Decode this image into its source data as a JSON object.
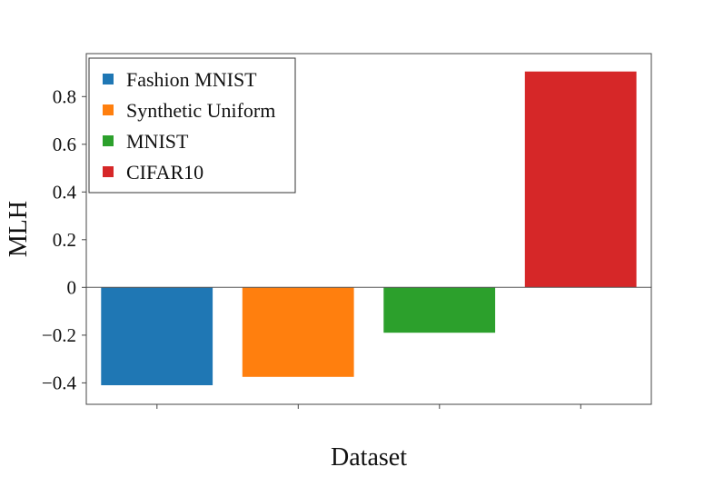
{
  "chart_data": {
    "type": "bar",
    "title": "",
    "xlabel": "Dataset",
    "ylabel": "MLH",
    "ylim": [
      -0.49,
      0.98
    ],
    "yticks": [
      -0.4,
      -0.2,
      0,
      0.2,
      0.4,
      0.6,
      0.8
    ],
    "ytick_labels": [
      "−0.4",
      "−0.2",
      "0",
      "0.2",
      "0.4",
      "0.6",
      "0.8"
    ],
    "grid": false,
    "legend_position": "top-left",
    "series": [
      {
        "name": "Fashion MNIST",
        "value": -0.41,
        "color": "#1f77b4"
      },
      {
        "name": "Synthetic Uniform",
        "value": -0.375,
        "color": "#ff7f0e"
      },
      {
        "name": "MNIST",
        "value": -0.19,
        "color": "#2ca02c"
      },
      {
        "name": "CIFAR10",
        "value": 0.905,
        "color": "#d62728"
      }
    ]
  }
}
